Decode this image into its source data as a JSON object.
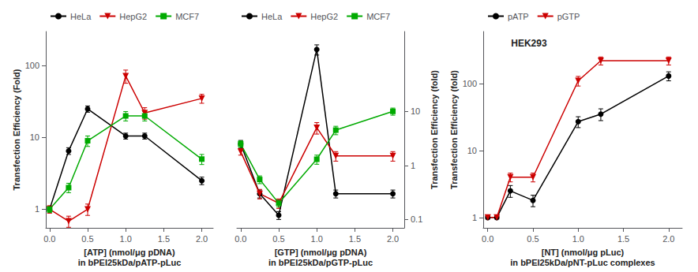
{
  "chart_data": [
    {
      "type": "line",
      "xlabel": "[ATP] (nmol/μg pDNA)\nin bPEI25kDa/pATP-pLuc",
      "ylabel": "Transfection Efficiency (Fold)",
      "log": "y",
      "grid": false,
      "legend": "top",
      "x": [
        0.0,
        0.25,
        0.5,
        1.0,
        1.25,
        2.0
      ],
      "xlim": [
        -0.05,
        2.15
      ],
      "xticks": [
        {
          "value": 0.0,
          "label": "0.0"
        },
        0.5,
        {
          "value": 1.0,
          "label": "1.0"
        },
        1.5,
        {
          "value": 2.0,
          "label": "2.0"
        }
      ],
      "ylim": [
        0.55,
        300
      ],
      "yticks": [
        1,
        10,
        100
      ],
      "series": [
        {
          "name": "HeLa",
          "color": "#000000",
          "marker": "circle",
          "values": [
            1.0,
            6.5,
            25.0,
            10.5,
            10.5,
            2.5
          ],
          "yerr": [
            0.05,
            0.7,
            2.5,
            1.0,
            1.0,
            0.3
          ]
        },
        {
          "name": "HepG2",
          "color": "#cc0000",
          "marker": "triangle_down",
          "values": [
            1.0,
            0.68,
            1.0,
            72.0,
            22.0,
            35.0
          ],
          "yerr": [
            0.12,
            0.12,
            0.18,
            15.0,
            4.0,
            5.0
          ]
        },
        {
          "name": "MCF7",
          "color": "#00aa00",
          "marker": "square",
          "values": [
            1.0,
            2.0,
            9.0,
            20.0,
            20.0,
            5.0
          ],
          "yerr": [
            0.1,
            0.3,
            1.5,
            3.0,
            3.0,
            0.8
          ]
        }
      ]
    },
    {
      "type": "line",
      "xlabel": "[GTP] (nmol/μg pDNA)\nin bPEI25kDa/pGTP-pLuc",
      "ylabel": "Transfection Efficiency (fold)",
      "log": "y",
      "grid": false,
      "legend": "top",
      "x": [
        0.0,
        0.25,
        0.5,
        1.0,
        1.25,
        2.0
      ],
      "xlim": [
        -0.05,
        2.15
      ],
      "xticks": [
        {
          "value": 0.0,
          "label": "0.0"
        },
        0.5,
        {
          "value": 1.0,
          "label": "1.0"
        },
        1.5,
        {
          "value": 2.0,
          "label": "2.0"
        }
      ],
      "ylim": [
        0.07,
        300
      ],
      "yticks": [
        0.1,
        1,
        10
      ],
      "series": [
        {
          "name": "HeLa",
          "color": "#000000",
          "marker": "circle",
          "values": [
            2.5,
            0.3,
            0.12,
            140.0,
            0.3,
            0.3
          ],
          "yerr": [
            0.4,
            0.05,
            0.02,
            30.0,
            0.05,
            0.05
          ]
        },
        {
          "name": "HepG2",
          "color": "#cc0000",
          "marker": "triangle_down",
          "values": [
            1.8,
            0.3,
            0.2,
            5.0,
            1.5,
            1.5
          ],
          "yerr": [
            0.25,
            0.06,
            0.04,
            1.2,
            0.3,
            0.3
          ]
        },
        {
          "name": "MCF7",
          "color": "#00aa00",
          "marker": "square",
          "values": [
            2.5,
            0.55,
            0.2,
            1.3,
            4.5,
            10.0
          ],
          "yerr": [
            0.35,
            0.09,
            0.03,
            0.25,
            0.8,
            1.5
          ]
        }
      ]
    },
    {
      "type": "line",
      "title": "HEK293",
      "xlabel": "[NT] (nmol/μg pLuc)\nin bPEI25kDa/pNT-pLuc complexes",
      "ylabel": "Transfection Efficiency (fold)",
      "log": "y",
      "grid": false,
      "legend": "top",
      "x": [
        0.0,
        0.1,
        0.25,
        0.5,
        1.0,
        1.25,
        2.0
      ],
      "xlim": [
        -0.05,
        2.15
      ],
      "xticks": [
        {
          "value": 0.0,
          "label": "0.0"
        },
        0.5,
        {
          "value": 1.0,
          "label": "1.0"
        },
        1.5,
        {
          "value": 2.0,
          "label": "2.0"
        }
      ],
      "ylim": [
        0.7,
        600
      ],
      "yticks": [
        1,
        10,
        100
      ],
      "series": [
        {
          "name": "pATP",
          "color": "#000000",
          "marker": "circle",
          "values": [
            1.0,
            1.0,
            2.5,
            1.8,
            27.0,
            35.0,
            130.0
          ],
          "yerr": [
            0.05,
            0.05,
            0.5,
            0.35,
            5.0,
            7.0,
            20.0
          ]
        },
        {
          "name": "pGTP",
          "color": "#cc0000",
          "marker": "triangle_down",
          "values": [
            1.0,
            1.0,
            4.0,
            4.0,
            110.0,
            220.0,
            220.0
          ],
          "yerr": [
            0.05,
            0.05,
            0.6,
            0.6,
            18.0,
            30.0,
            30.0
          ]
        }
      ]
    }
  ]
}
